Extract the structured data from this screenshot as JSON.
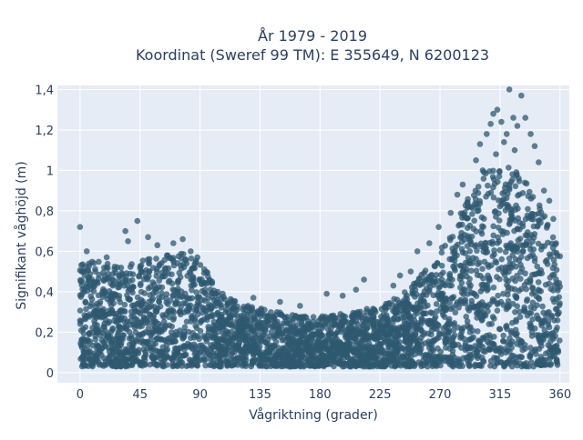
{
  "chart_data": {
    "type": "scatter",
    "title_line1": "År 1979 - 2019",
    "title_line2": "Koordinat (Sweref 99 TM): E 355649, N 6200123",
    "xlabel": "Vågriktning (grader)",
    "ylabel": "Signifikant våghöjd (m)",
    "xlim": [
      -17,
      367
    ],
    "ylim": [
      -0.05,
      1.42
    ],
    "x_ticks": [
      0,
      45,
      90,
      135,
      180,
      225,
      270,
      315,
      360
    ],
    "x_tick_labels": [
      "0",
      "45",
      "90",
      "135",
      "180",
      "225",
      "270",
      "315",
      "360"
    ],
    "y_ticks": [
      0,
      0.2,
      0.4,
      0.6,
      0.8,
      1.0,
      1.2,
      1.4
    ],
    "y_tick_labels": [
      "0",
      "0,2",
      "0,4",
      "0,6",
      "0,8",
      "1",
      "1,2",
      "1,4"
    ],
    "grid": true,
    "legend": "none",
    "colors": {
      "marker": "#2e5870",
      "plot_bg": "#e5ecf6",
      "grid": "#ffffff",
      "text": "#2a3f5f"
    },
    "envelope": {
      "x": [
        0,
        15,
        30,
        45,
        60,
        75,
        90,
        105,
        120,
        135,
        150,
        165,
        180,
        195,
        210,
        225,
        240,
        255,
        270,
        285,
        300,
        315,
        330,
        345,
        360
      ],
      "upper_y": [
        0.56,
        0.55,
        0.52,
        0.55,
        0.58,
        0.6,
        0.55,
        0.4,
        0.34,
        0.33,
        0.3,
        0.28,
        0.28,
        0.29,
        0.31,
        0.33,
        0.38,
        0.48,
        0.6,
        0.8,
        0.98,
        1.05,
        0.98,
        0.85,
        0.58
      ],
      "lower_y": [
        0.03,
        0.03,
        0.03,
        0.03,
        0.03,
        0.03,
        0.03,
        0.03,
        0.03,
        0.03,
        0.03,
        0.03,
        0.03,
        0.03,
        0.03,
        0.03,
        0.03,
        0.03,
        0.03,
        0.03,
        0.03,
        0.03,
        0.03,
        0.03,
        0.03
      ]
    },
    "outlier_points": [
      {
        "x": 0,
        "y": 0.72
      },
      {
        "x": 43,
        "y": 0.75
      },
      {
        "x": 34,
        "y": 0.7
      },
      {
        "x": 51,
        "y": 0.67
      },
      {
        "x": 77,
        "y": 0.66
      },
      {
        "x": 70,
        "y": 0.64
      },
      {
        "x": 58,
        "y": 0.63
      },
      {
        "x": 36,
        "y": 0.65
      },
      {
        "x": 5,
        "y": 0.6
      },
      {
        "x": 20,
        "y": 0.57
      },
      {
        "x": 83,
        "y": 0.6
      },
      {
        "x": 88,
        "y": 0.57
      },
      {
        "x": 130,
        "y": 0.37
      },
      {
        "x": 150,
        "y": 0.35
      },
      {
        "x": 165,
        "y": 0.33
      },
      {
        "x": 185,
        "y": 0.39
      },
      {
        "x": 197,
        "y": 0.38
      },
      {
        "x": 207,
        "y": 0.41
      },
      {
        "x": 213,
        "y": 0.46
      },
      {
        "x": 240,
        "y": 0.48
      },
      {
        "x": 235,
        "y": 0.43
      },
      {
        "x": 248,
        "y": 0.5
      },
      {
        "x": 253,
        "y": 0.6
      },
      {
        "x": 262,
        "y": 0.64
      },
      {
        "x": 269,
        "y": 0.72
      },
      {
        "x": 278,
        "y": 0.79
      },
      {
        "x": 283,
        "y": 0.88
      },
      {
        "x": 287,
        "y": 0.93
      },
      {
        "x": 297,
        "y": 1.05
      },
      {
        "x": 300,
        "y": 1.13
      },
      {
        "x": 305,
        "y": 1.18
      },
      {
        "x": 308,
        "y": 1.23
      },
      {
        "x": 310,
        "y": 1.28
      },
      {
        "x": 313,
        "y": 1.3
      },
      {
        "x": 316,
        "y": 1.24
      },
      {
        "x": 320,
        "y": 1.18
      },
      {
        "x": 322,
        "y": 1.4
      },
      {
        "x": 325,
        "y": 1.26
      },
      {
        "x": 328,
        "y": 1.22
      },
      {
        "x": 331,
        "y": 1.37
      },
      {
        "x": 334,
        "y": 1.26
      },
      {
        "x": 338,
        "y": 1.18
      },
      {
        "x": 341,
        "y": 1.12
      },
      {
        "x": 344,
        "y": 1.04
      },
      {
        "x": 348,
        "y": 0.9
      },
      {
        "x": 352,
        "y": 0.85
      },
      {
        "x": 355,
        "y": 0.76
      },
      {
        "x": 357,
        "y": 0.64
      },
      {
        "x": 318,
        "y": 1.14
      },
      {
        "x": 326,
        "y": 1.1
      },
      {
        "x": 312,
        "y": 1.08
      },
      {
        "x": 302,
        "y": 1.0
      }
    ]
  }
}
